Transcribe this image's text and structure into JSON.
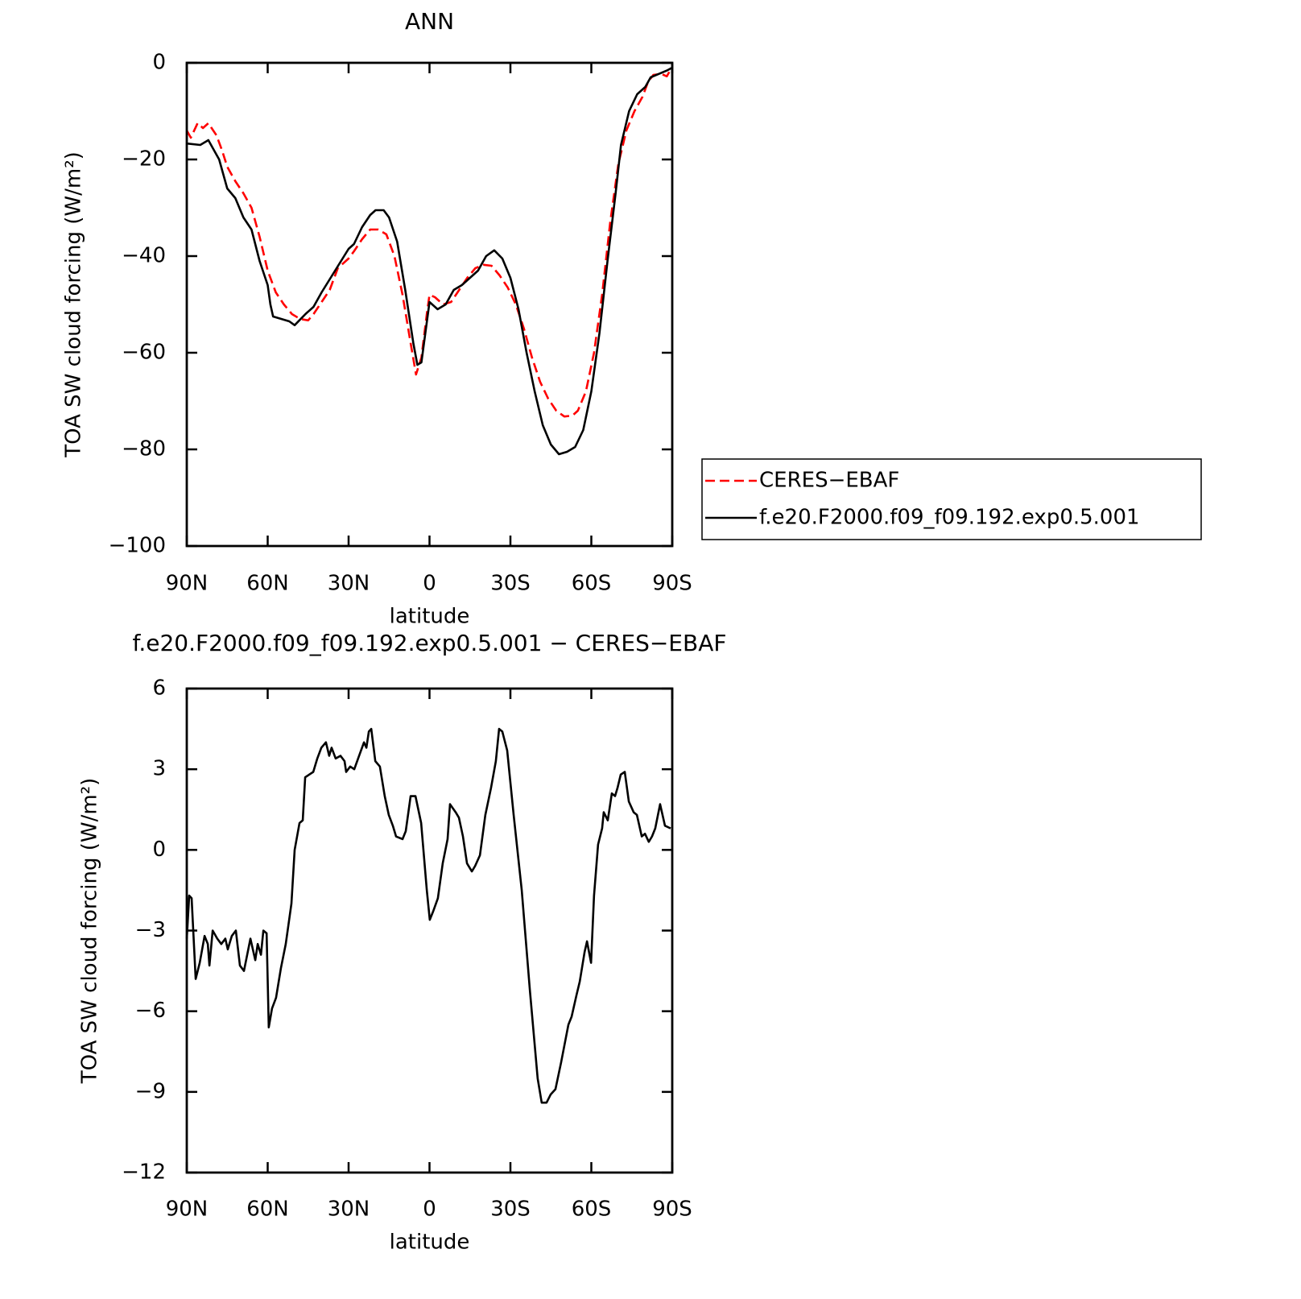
{
  "chart_data": [
    {
      "type": "line",
      "title": "ANN",
      "x_label": "latitude",
      "y_label": "TOA SW cloud forcing (W/m²)",
      "xlim": [
        90,
        -90
      ],
      "xticks": [
        {
          "value": 90,
          "label": "90N"
        },
        {
          "value": 60,
          "label": "60N"
        },
        {
          "value": 30,
          "label": "30N"
        },
        0,
        {
          "value": -30,
          "label": "30S"
        },
        {
          "value": -60,
          "label": "60S"
        },
        {
          "value": -90,
          "label": "90S"
        }
      ],
      "ylim": [
        -100,
        0
      ],
      "yticks": [
        0,
        {
          "value": -20,
          "label": "−20"
        },
        {
          "value": -40,
          "label": "−40"
        },
        {
          "value": -60,
          "label": "−60"
        },
        {
          "value": -80,
          "label": "−80"
        },
        {
          "value": -100,
          "label": "−100"
        }
      ],
      "legend": "right",
      "series": [
        {
          "name": "CERES−EBAF",
          "color": "#ff0000",
          "line_style": "dashed",
          "x": [
            90,
            88.5,
            86,
            84,
            82,
            79,
            77,
            75,
            72,
            69,
            66,
            63,
            60,
            57,
            54,
            51,
            48,
            45,
            43,
            40,
            37,
            34,
            30,
            28,
            25,
            22,
            19,
            16,
            13,
            10,
            7,
            5,
            3,
            1,
            0,
            -2,
            -5,
            -8,
            -11,
            -14,
            -17,
            -20,
            -23,
            -26,
            -29,
            -32,
            -35,
            -38,
            -41,
            -44,
            -47,
            -50,
            -53,
            -55,
            -58,
            -61,
            -64,
            -67,
            -70,
            -73,
            -76,
            -79,
            -81,
            -83,
            -86,
            -88,
            -89,
            -90
          ],
          "values": [
            -14,
            -15.5,
            -12.5,
            -13.5,
            -12.5,
            -15,
            -18,
            -21.5,
            -24.5,
            -27,
            -30,
            -36,
            -43,
            -47.5,
            -50,
            -52,
            -53,
            -53.3,
            -52,
            -49.5,
            -47,
            -42.5,
            -40.5,
            -39,
            -36.5,
            -34.5,
            -34.5,
            -35.5,
            -40,
            -48,
            -58,
            -64.5,
            -61,
            -52,
            -48,
            -48.5,
            -50,
            -49.5,
            -47,
            -44.5,
            -42.5,
            -41.8,
            -42,
            -44,
            -46.5,
            -50,
            -55,
            -61,
            -66,
            -69.5,
            -72,
            -73.2,
            -73,
            -72,
            -68,
            -60,
            -48,
            -33,
            -21,
            -14,
            -10,
            -7,
            -4,
            -2.5,
            -2.3,
            -2.8,
            -1.8,
            -2
          ]
        },
        {
          "name": "f.e20.F2000.f09_f09.192.exp0.5.001",
          "color": "#000000",
          "line_style": "solid",
          "x": [
            90,
            85,
            82,
            78,
            75,
            72,
            69,
            66,
            63,
            60,
            59,
            58,
            55,
            52,
            50,
            46,
            43,
            40,
            35,
            30,
            28,
            25,
            22,
            20,
            17,
            15,
            12,
            9,
            6,
            4.5,
            3,
            0,
            -3,
            -6,
            -9,
            -12,
            -18,
            -21,
            -24,
            -27,
            -30,
            -33,
            -36,
            -39,
            -42,
            -45,
            -48,
            -51,
            -54,
            -57,
            -60,
            -63,
            -66,
            -69,
            -71,
            -74,
            -77,
            -80,
            -82,
            -85,
            -88,
            -90
          ],
          "values": [
            -16.7,
            -17,
            -16,
            -20,
            -26,
            -28,
            -32,
            -34.5,
            -41,
            -46,
            -50,
            -52.5,
            -53,
            -53.5,
            -54.3,
            -52,
            -50.5,
            -47.5,
            -43,
            -38.5,
            -37.5,
            -34,
            -31.5,
            -30.5,
            -30.5,
            -32,
            -37,
            -47,
            -58,
            -62.5,
            -62,
            -49.5,
            -51,
            -50,
            -47,
            -46,
            -43,
            -40,
            -38.8,
            -40.5,
            -44.5,
            -51,
            -60,
            -68,
            -75,
            -79,
            -81,
            -80.5,
            -79.5,
            -76,
            -68,
            -56,
            -41,
            -27,
            -17,
            -10,
            -6.5,
            -5,
            -3,
            -2.3,
            -1.6,
            -1
          ]
        }
      ]
    },
    {
      "type": "line",
      "title": "f.e20.F2000.f09_f09.192.exp0.5.001 − CERES−EBAF",
      "x_label": "latitude",
      "y_label": "TOA SW cloud forcing (W/m²)",
      "xlim": [
        90,
        -90
      ],
      "xticks": [
        {
          "value": 90,
          "label": "90N"
        },
        {
          "value": 60,
          "label": "60N"
        },
        {
          "value": 30,
          "label": "30N"
        },
        0,
        {
          "value": -30,
          "label": "30S"
        },
        {
          "value": -60,
          "label": "60S"
        },
        {
          "value": -90,
          "label": "90S"
        }
      ],
      "ylim": [
        -12,
        6
      ],
      "yticks": [
        6,
        3,
        0,
        {
          "value": -3,
          "label": "−3"
        },
        {
          "value": -6,
          "label": "−6"
        },
        {
          "value": -9,
          "label": "−9"
        },
        {
          "value": -12,
          "label": "−12"
        }
      ],
      "series": [
        {
          "color": "#000000",
          "line_style": "solid",
          "x": [
            90,
            89.1,
            88.2,
            86.7,
            85.2,
            83.4,
            82.2,
            81.6,
            80.4,
            78.7,
            77.2,
            75.7,
            74.8,
            73.3,
            71.8,
            70.3,
            68.8,
            66.4,
            64.6,
            63.7,
            62.5,
            61.6,
            60.4,
            59.6,
            58.4,
            56.9,
            55.1,
            53.3,
            51.2,
            50,
            48.2,
            47,
            46.1,
            44.6,
            43.1,
            41.6,
            40.1,
            38.4,
            37.2,
            36.3,
            34.8,
            33,
            31.5,
            30.9,
            29.4,
            27.9,
            26.1,
            24.3,
            23.4,
            22.5,
            21.6,
            20.1,
            18.4,
            16.6,
            15.1,
            13.6,
            12.4,
            10,
            8.8,
            7,
            5.2,
            3.1,
            1,
            -0.1,
            -1.3,
            -3.1,
            -4.9,
            -6.7,
            -7.6,
            -9.7,
            -10.9,
            -12.4,
            -13.9,
            -15.7,
            -16.9,
            -18.7,
            -20.7,
            -22.8,
            -24.6,
            -25.8,
            -27,
            -28.8,
            -31.2,
            -34.2,
            -37.2,
            -40.1,
            -41.6,
            -43.4,
            -44.9,
            -46.7,
            -48.8,
            -51.5,
            -52.7,
            -54.5,
            -55.7,
            -57.5,
            -58.4,
            -59.9,
            -61,
            -62.5,
            -64,
            -64.6,
            -66.1,
            -67.6,
            -68.8,
            -69.7,
            -70.9,
            -72.4,
            -73.9,
            -75.7,
            -76.9,
            -78.7,
            -79.9,
            -81.3,
            -82.5,
            -83.7,
            -85.5,
            -87.3,
            -89.4
          ],
          "values": [
            -3.3,
            -1.7,
            -1.8,
            -4.8,
            -4.2,
            -3.2,
            -3.5,
            -4.3,
            -3,
            -3.3,
            -3.5,
            -3.3,
            -3.7,
            -3.2,
            -3,
            -4.3,
            -4.5,
            -3.3,
            -4.1,
            -3.5,
            -3.9,
            -3,
            -3.1,
            -6.6,
            -5.9,
            -5.5,
            -4.4,
            -3.5,
            -2,
            0,
            1,
            1.1,
            2.7,
            2.8,
            2.9,
            3.4,
            3.8,
            4,
            3.5,
            3.8,
            3.4,
            3.5,
            3.3,
            2.9,
            3.1,
            3,
            3.5,
            4,
            3.8,
            4.4,
            4.5,
            3.3,
            3.1,
            2,
            1.3,
            0.9,
            0.5,
            0.4,
            0.7,
            2,
            2,
            1,
            -1.5,
            -2.6,
            -2.3,
            -1.8,
            -0.5,
            0.4,
            1.7,
            1.4,
            1.2,
            0.5,
            -0.5,
            -0.8,
            -0.6,
            -0.2,
            1.3,
            2.3,
            3.3,
            4.5,
            4.4,
            3.7,
            1.3,
            -1.5,
            -5.2,
            -8.5,
            -9.4,
            -9.4,
            -9.1,
            -8.9,
            -7.9,
            -6.5,
            -6.2,
            -5.4,
            -4.9,
            -3.8,
            -3.4,
            -4.2,
            -1.7,
            0.2,
            0.8,
            1.4,
            1.1,
            2.1,
            2,
            2.3,
            2.8,
            2.9,
            1.8,
            1.4,
            1.3,
            0.5,
            0.6,
            0.3,
            0.5,
            0.8,
            1.7,
            0.9,
            0.8
          ]
        }
      ]
    }
  ]
}
